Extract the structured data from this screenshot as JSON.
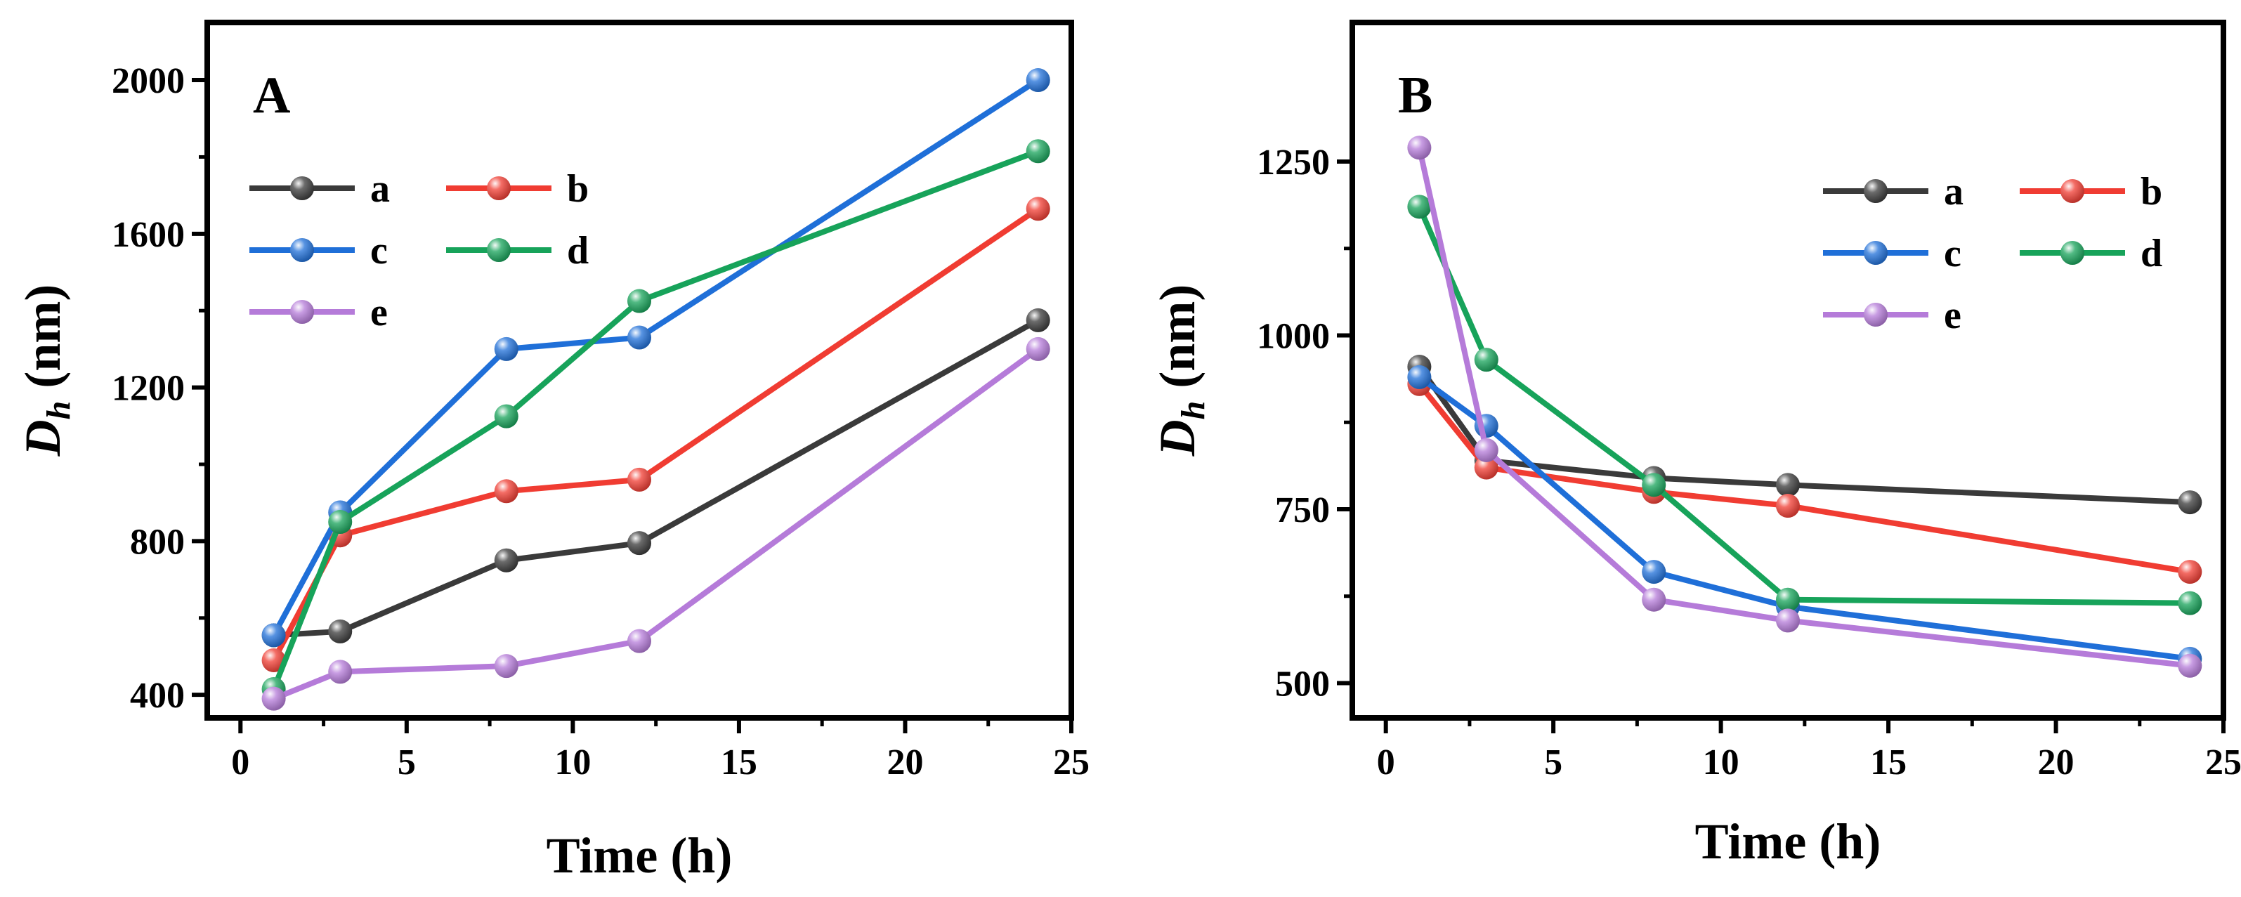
{
  "chart_data": [
    {
      "type": "line",
      "panel_label": "A",
      "xlabel": "Time (h)",
      "ylabel": "D_h (nm)",
      "ylabel_main": "D",
      "ylabel_sub": "h",
      "ylabel_unit": " (nm)",
      "xlim": [
        -1,
        25
      ],
      "ylim": [
        340,
        2150
      ],
      "xticks": [
        0,
        5,
        10,
        15,
        20,
        25
      ],
      "yticks": [
        400,
        800,
        1200,
        1600,
        2000
      ],
      "x": [
        1,
        3,
        8,
        12,
        24
      ],
      "legend_position": "upper-left",
      "series": [
        {
          "name": "a",
          "color": "#3a3a3a",
          "values": [
            555,
            565,
            750,
            795,
            1375
          ]
        },
        {
          "name": "b",
          "color": "#f03c32",
          "values": [
            490,
            815,
            930,
            960,
            1665
          ]
        },
        {
          "name": "c",
          "color": "#1f6fd8",
          "values": [
            555,
            875,
            1300,
            1330,
            2000
          ]
        },
        {
          "name": "d",
          "color": "#17a35a",
          "values": [
            415,
            850,
            1125,
            1425,
            1815
          ]
        },
        {
          "name": "e",
          "color": "#b57bd9",
          "values": [
            390,
            460,
            475,
            540,
            1300
          ]
        }
      ]
    },
    {
      "type": "line",
      "panel_label": "B",
      "xlabel": "Time (h)",
      "ylabel": "D_h (nm)",
      "ylabel_main": "D",
      "ylabel_sub": "h",
      "ylabel_unit": " (nm)",
      "xlim": [
        -1,
        25
      ],
      "ylim": [
        450,
        1450
      ],
      "xticks": [
        0,
        5,
        10,
        15,
        20,
        25
      ],
      "yticks": [
        500,
        750,
        1000,
        1250
      ],
      "x": [
        1,
        3,
        8,
        12,
        24
      ],
      "legend_position": "upper-right",
      "series": [
        {
          "name": "a",
          "color": "#3a3a3a",
          "values": [
            955,
            820,
            795,
            785,
            760
          ]
        },
        {
          "name": "b",
          "color": "#f03c32",
          "values": [
            930,
            810,
            775,
            755,
            660
          ]
        },
        {
          "name": "c",
          "color": "#1f6fd8",
          "values": [
            940,
            870,
            660,
            610,
            535
          ]
        },
        {
          "name": "d",
          "color": "#17a35a",
          "values": [
            1185,
            965,
            785,
            620,
            615
          ]
        },
        {
          "name": "e",
          "color": "#b57bd9",
          "values": [
            1270,
            835,
            620,
            590,
            525
          ]
        }
      ]
    }
  ]
}
